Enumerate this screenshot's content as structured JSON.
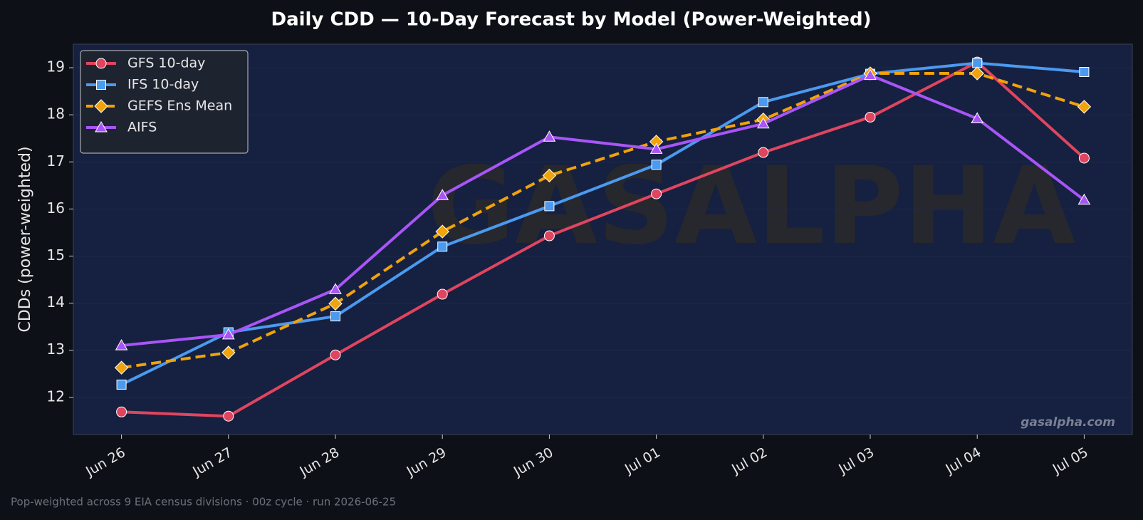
{
  "chart_data": {
    "type": "line",
    "title": "Daily CDD — 10-Day Forecast by Model (Power-Weighted)",
    "y_label": "CDDs (power-weighted)",
    "watermark": "GASALPHA",
    "site": "gasalpha.com",
    "footnote": "Pop-weighted across 9 EIA census divisions  ·  00z cycle  ·  run 2026-06-25",
    "categories": [
      "Jun 26",
      "Jun 27",
      "Jun 28",
      "Jun 29",
      "Jun 30",
      "Jul 01",
      "Jul 02",
      "Jul 03",
      "Jul 04",
      "Jul 05"
    ],
    "series": [
      {
        "name": "GFS 10-day",
        "color": "#e0455f",
        "marker": "circle",
        "dash": "solid",
        "values": [
          11.69,
          11.6,
          12.9,
          14.19,
          15.43,
          16.32,
          17.2,
          17.95,
          19.12,
          17.08
        ]
      },
      {
        "name": "IFS 10-day",
        "color": "#4a9af0",
        "marker": "square",
        "dash": "solid",
        "values": [
          12.27,
          13.38,
          13.72,
          15.2,
          16.06,
          16.94,
          18.27,
          18.87,
          19.1,
          18.91
        ]
      },
      {
        "name": "GEFS Ens Mean",
        "color": "#f0a30a",
        "marker": "diamond",
        "dash": "dashed",
        "values": [
          12.63,
          12.95,
          13.99,
          15.52,
          16.71,
          17.43,
          17.9,
          18.88,
          18.88,
          18.17
        ]
      },
      {
        "name": "AIFS",
        "color": "#a855f7",
        "marker": "triangle",
        "dash": "solid",
        "values": [
          13.1,
          13.33,
          14.29,
          16.29,
          17.53,
          17.27,
          17.81,
          18.84,
          17.92,
          16.19
        ]
      }
    ],
    "ylim": [
      11.21,
      19.5
    ],
    "yticks": [
      12,
      13,
      14,
      15,
      16,
      17,
      18,
      19
    ],
    "grid": true,
    "legend": "upper left"
  }
}
